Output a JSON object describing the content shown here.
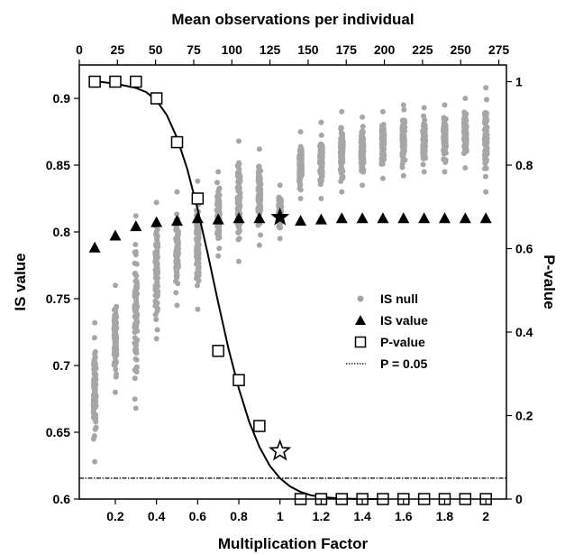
{
  "chart_data": {
    "type": "scatter",
    "title": "",
    "xlabel": "Multiplication Factor",
    "x2label": "Mean observations per individual",
    "ylabel": "IS value",
    "y2label": "P-value",
    "xlim": [
      0.025,
      2.1
    ],
    "x2lim": [
      0,
      280
    ],
    "ylim": [
      0.6,
      0.925
    ],
    "y2lim": [
      0,
      1.04
    ],
    "x_ticks": [
      0.2,
      0.4,
      0.6,
      0.8,
      1,
      1.2,
      1.4,
      1.6,
      1.8,
      2
    ],
    "x_tick_labels": [
      "0.2",
      "0.4",
      "0.6",
      "0.8",
      "1",
      "1.2",
      "1.4",
      "1.6",
      "1.8",
      "2"
    ],
    "x2_ticks": [
      0,
      25,
      50,
      75,
      100,
      125,
      150,
      175,
      200,
      225,
      250,
      275
    ],
    "x2_tick_labels": [
      "0",
      "25",
      "50",
      "75",
      "100",
      "125",
      "150",
      "175",
      "200",
      "225",
      "250",
      "275"
    ],
    "y_ticks": [
      0.6,
      0.65,
      0.7,
      0.75,
      0.8,
      0.85,
      0.9
    ],
    "y_tick_labels": [
      "0.6",
      "0.65",
      "0.7",
      "0.75",
      "0.8",
      "0.85",
      "0.9"
    ],
    "y2_ticks": [
      0,
      0.2,
      0.4,
      0.6,
      0.8,
      1
    ],
    "y2_tick_labels": [
      "0",
      "0.2",
      "0.4",
      "0.6",
      "0.8",
      "1"
    ],
    "grid": false,
    "legend_position": "right-middle",
    "legend": [
      {
        "label": "IS null",
        "marker": "circle",
        "color": "#a6a6a6"
      },
      {
        "label": "IS value",
        "marker": "triangle",
        "color": "#000000"
      },
      {
        "label": "P-value",
        "marker": "open-square",
        "color": "#000000"
      },
      {
        "label": "P = 0.05",
        "marker": "dotted-line",
        "color": "#000000"
      }
    ],
    "series": [
      {
        "name": "IS null",
        "axis": "left",
        "style": "gray-dots",
        "ranges": [
          {
            "x": 0.1,
            "min": 0.628,
            "max": 0.732
          },
          {
            "x": 0.2,
            "min": 0.68,
            "max": 0.76
          },
          {
            "x": 0.3,
            "min": 0.668,
            "max": 0.812
          },
          {
            "x": 0.4,
            "min": 0.72,
            "max": 0.822
          },
          {
            "x": 0.5,
            "min": 0.745,
            "max": 0.83
          },
          {
            "x": 0.6,
            "min": 0.742,
            "max": 0.838
          },
          {
            "x": 0.7,
            "min": 0.782,
            "max": 0.845
          },
          {
            "x": 0.8,
            "min": 0.778,
            "max": 0.868
          },
          {
            "x": 0.9,
            "min": 0.79,
            "max": 0.862
          },
          {
            "x": 1.0,
            "min": 0.795,
            "max": 0.835
          },
          {
            "x": 1.1,
            "min": 0.825,
            "max": 0.875
          },
          {
            "x": 1.2,
            "min": 0.825,
            "max": 0.882
          },
          {
            "x": 1.3,
            "min": 0.83,
            "max": 0.89
          },
          {
            "x": 1.4,
            "min": 0.835,
            "max": 0.886
          },
          {
            "x": 1.5,
            "min": 0.84,
            "max": 0.89
          },
          {
            "x": 1.6,
            "min": 0.842,
            "max": 0.895
          },
          {
            "x": 1.7,
            "min": 0.845,
            "max": 0.893
          },
          {
            "x": 1.8,
            "min": 0.845,
            "max": 0.895
          },
          {
            "x": 1.9,
            "min": 0.848,
            "max": 0.9
          },
          {
            "x": 2.0,
            "min": 0.83,
            "max": 0.908
          }
        ]
      },
      {
        "name": "IS value",
        "axis": "left",
        "marker": "triangle",
        "x": [
          0.1,
          0.2,
          0.3,
          0.4,
          0.5,
          0.6,
          0.7,
          0.8,
          0.9,
          1.1,
          1.2,
          1.3,
          1.4,
          1.5,
          1.6,
          1.7,
          1.8,
          1.9,
          2.0
        ],
        "y": [
          0.788,
          0.797,
          0.804,
          0.807,
          0.808,
          0.81,
          0.809,
          0.81,
          0.81,
          0.808,
          0.809,
          0.81,
          0.81,
          0.81,
          0.81,
          0.81,
          0.81,
          0.81,
          0.81
        ]
      },
      {
        "name": "IS value (observed)",
        "axis": "left",
        "marker": "star",
        "x": [
          1.0
        ],
        "y": [
          0.811
        ]
      },
      {
        "name": "P-value",
        "axis": "right",
        "marker": "open-square",
        "x": [
          0.1,
          0.2,
          0.3,
          0.4,
          0.5,
          0.6,
          0.7,
          0.8,
          0.9,
          1.1,
          1.2,
          1.3,
          1.4,
          1.5,
          1.6,
          1.7,
          1.8,
          1.9,
          2.0
        ],
        "y": [
          1.0,
          1.0,
          1.0,
          0.96,
          0.855,
          0.72,
          0.355,
          0.285,
          0.175,
          0.0,
          0.0,
          0.0,
          0.0,
          0.0,
          0.0,
          0.0,
          0.0,
          0.0,
          0.0
        ]
      },
      {
        "name": "P-value (observed)",
        "axis": "right",
        "marker": "star",
        "x": [
          1.0
        ],
        "y": [
          0.115
        ]
      },
      {
        "name": "Fitted curve",
        "axis": "right",
        "style": "solid-line",
        "x": [
          0.12,
          0.2,
          0.3,
          0.35,
          0.4,
          0.45,
          0.5,
          0.55,
          0.6,
          0.65,
          0.7,
          0.75,
          0.8,
          0.85,
          0.9,
          0.95,
          1.0,
          1.05,
          1.1,
          1.15,
          1.2,
          1.3,
          1.4,
          1.5
        ],
        "y": [
          1.0,
          0.995,
          0.985,
          0.975,
          0.955,
          0.92,
          0.865,
          0.79,
          0.695,
          0.585,
          0.47,
          0.36,
          0.265,
          0.185,
          0.125,
          0.08,
          0.05,
          0.03,
          0.017,
          0.009,
          0.005,
          0.001,
          0.0,
          0.0
        ]
      },
      {
        "name": "P = 0.05",
        "axis": "right",
        "style": "dotted-line",
        "y": 0.05
      }
    ]
  }
}
